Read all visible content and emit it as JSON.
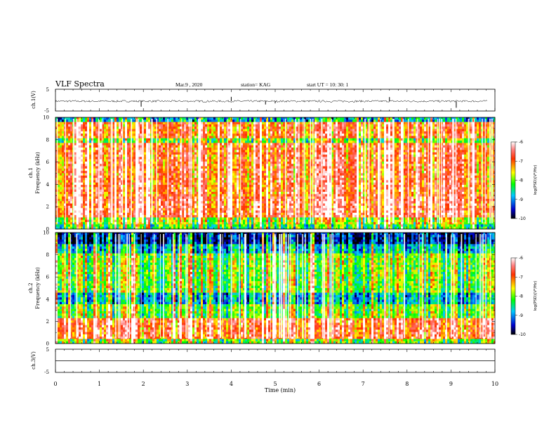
{
  "header": {
    "title": "VLF Spectra",
    "date": "Mar.9  , 2020",
    "station": "station= KAG",
    "start_ut": "start  UT  =   10: 30: 1"
  },
  "chart_data": [
    {
      "type": "line",
      "panel": "ch1-waveform",
      "ylabel": "ch.1(V)",
      "yticks": [
        "5",
        "-5"
      ],
      "ylim": [
        -5,
        5
      ],
      "trace_baseline": -0.5,
      "spikes": [
        {
          "x": 1.95,
          "y": -3.0
        },
        {
          "x": 4.0,
          "y": 1.5
        },
        {
          "x": 4.78,
          "y": -2.0
        },
        {
          "x": 5.0,
          "y": -1.5
        },
        {
          "x": 7.6,
          "y": 1.4
        },
        {
          "x": 9.12,
          "y": -3.5
        }
      ]
    },
    {
      "type": "heatmap",
      "panel": "ch1-spectrogram",
      "ylabel_top": "ch.1",
      "ylabel": "Frequency (kHz)",
      "yticks": [
        "0",
        "2",
        "4",
        "6",
        "8",
        "10"
      ],
      "ylim": [
        0,
        10
      ],
      "colorbar": {
        "label": "log(PSD)(V²/Hz)",
        "ticks": [
          "-6",
          "-7",
          "-8",
          "-9",
          "-10"
        ],
        "range": [
          -10,
          -6
        ]
      }
    },
    {
      "type": "heatmap",
      "panel": "ch2-spectrogram",
      "ylabel_top": "ch.2",
      "ylabel": "Frequency (kHz)",
      "yticks": [
        "0",
        "2",
        "4",
        "6",
        "8",
        "10"
      ],
      "ylim": [
        0,
        10
      ],
      "colorbar": {
        "label": "log(PSD)(V²/Hz)",
        "ticks": [
          "-6",
          "-7",
          "-8",
          "-9",
          "-10"
        ],
        "range": [
          -10,
          -6
        ]
      }
    },
    {
      "type": "line",
      "panel": "ch3-waveform",
      "ylabel": "ch.3(V)",
      "yticks": [
        "5",
        "-5"
      ],
      "ylim": [
        -5,
        5
      ],
      "trace_baseline": 0
    }
  ],
  "x_axis": {
    "label": "Time (min)",
    "xlim": [
      0,
      10
    ],
    "ticks": [
      "0",
      "1",
      "2",
      "3",
      "4",
      "5",
      "6",
      "7",
      "8",
      "9",
      "10"
    ]
  },
  "colors": {
    "colormap": [
      "#000080",
      "#0000ff",
      "#00ffff",
      "#00ff00",
      "#ffff00",
      "#ff8000",
      "#ff0000",
      "#ffffff"
    ]
  }
}
